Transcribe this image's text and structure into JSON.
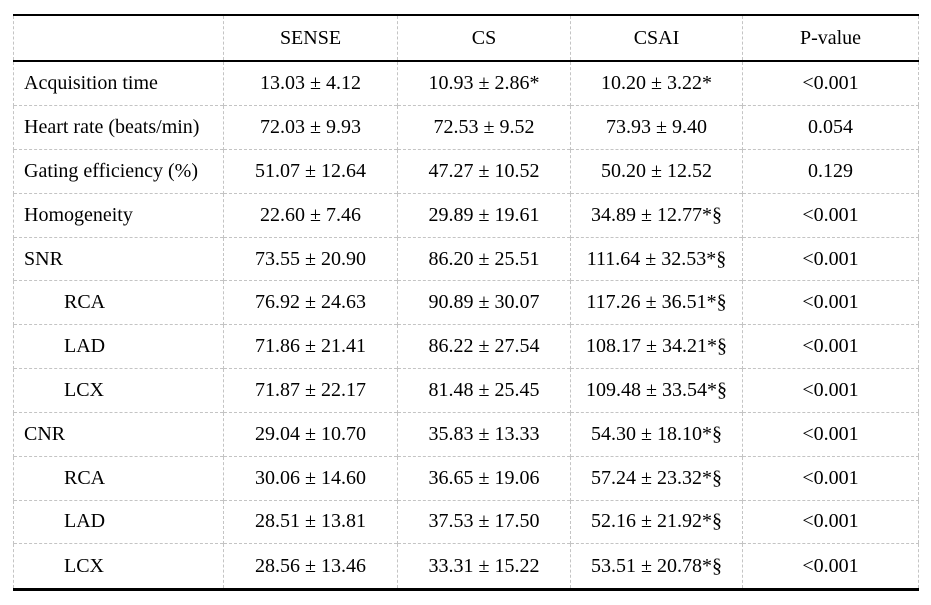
{
  "table": {
    "columns": [
      "",
      "SENSE",
      "CS",
      "CSAI",
      "P-value"
    ],
    "rows": [
      {
        "label": "Acquisition time",
        "indent": false,
        "values": [
          "13.03 ± 4.12",
          "10.93 ± 2.86*",
          "10.20 ± 3.22*",
          "<0.001"
        ]
      },
      {
        "label": "Heart rate (beats/min)",
        "indent": false,
        "values": [
          "72.03 ± 9.93",
          "72.53 ± 9.52",
          "73.93 ± 9.40",
          "0.054"
        ]
      },
      {
        "label": "Gating efficiency (%)",
        "indent": false,
        "values": [
          "51.07 ± 12.64",
          "47.27 ± 10.52",
          "50.20 ± 12.52",
          "0.129"
        ]
      },
      {
        "label": "Homogeneity",
        "indent": false,
        "values": [
          "22.60 ± 7.46",
          "29.89 ± 19.61",
          "34.89 ± 12.77*§",
          "<0.001"
        ]
      },
      {
        "label": "SNR",
        "indent": false,
        "values": [
          "73.55 ± 20.90",
          "86.20 ± 25.51",
          "111.64 ± 32.53*§",
          "<0.001"
        ]
      },
      {
        "label": "RCA",
        "indent": true,
        "values": [
          "76.92 ± 24.63",
          "90.89 ± 30.07",
          "117.26 ± 36.51*§",
          "<0.001"
        ]
      },
      {
        "label": "LAD",
        "indent": true,
        "values": [
          "71.86 ± 21.41",
          "86.22 ± 27.54",
          "108.17 ± 34.21*§",
          "<0.001"
        ]
      },
      {
        "label": "LCX",
        "indent": true,
        "values": [
          "71.87 ± 22.17",
          "81.48 ± 25.45",
          "109.48 ± 33.54*§",
          "<0.001"
        ]
      },
      {
        "label": "CNR",
        "indent": false,
        "values": [
          "29.04 ± 10.70",
          "35.83 ± 13.33",
          "54.30 ± 18.10*§",
          "<0.001"
        ]
      },
      {
        "label": "RCA",
        "indent": true,
        "values": [
          "30.06 ± 14.60",
          "36.65 ± 19.06",
          "57.24 ± 23.32*§",
          "<0.001"
        ]
      },
      {
        "label": "LAD",
        "indent": true,
        "values": [
          "28.51 ± 13.81",
          "37.53 ± 17.50",
          "52.16 ± 21.92*§",
          "<0.001"
        ]
      },
      {
        "label": "LCX",
        "indent": true,
        "values": [
          "28.56 ± 13.46",
          "33.31 ± 15.22",
          "53.51 ± 20.78*§",
          "<0.001"
        ]
      }
    ],
    "colors": {
      "rule": "#000000",
      "grid": "#c4c4c4",
      "text": "#000000",
      "background": "#ffffff"
    }
  }
}
